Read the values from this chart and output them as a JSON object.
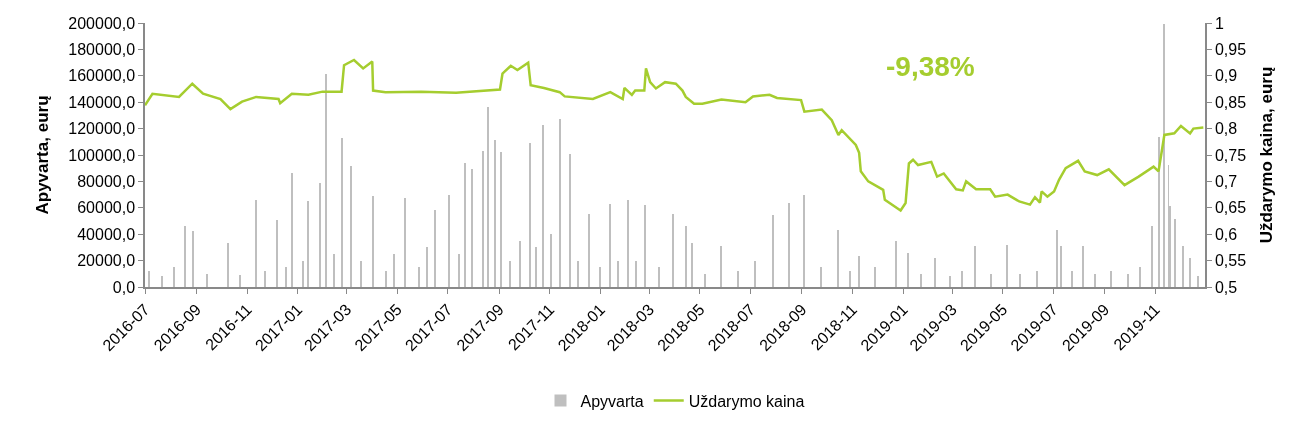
{
  "chart_data": {
    "type": "bar",
    "ylabel": "Apyvarta, eurų",
    "y2label": "Uždarymo kaina, eurų",
    "annotations": [
      "-9,38%"
    ],
    "xlim": [
      "2016-07-01",
      "2019-12-31"
    ],
    "xticks": [
      "2016-07",
      "2016-09",
      "2016-11",
      "2017-01",
      "2017-03",
      "2017-05",
      "2017-07",
      "2017-09",
      "2017-11",
      "2018-01",
      "2018-03",
      "2018-05",
      "2018-07",
      "2018-09",
      "2018-11",
      "2019-01",
      "2019-03",
      "2019-05",
      "2019-07",
      "2019-09",
      "2019-11"
    ],
    "ylim": [
      0,
      200000
    ],
    "yticks": [
      {
        "value": 0,
        "label": "0,0"
      },
      {
        "value": 20000,
        "label": "20000,0"
      },
      {
        "value": 40000,
        "label": "40000,0"
      },
      {
        "value": 60000,
        "label": "60000,0"
      },
      {
        "value": 80000,
        "label": "80000,0"
      },
      {
        "value": 100000,
        "label": "100000,0"
      },
      {
        "value": 120000,
        "label": "120000,0"
      },
      {
        "value": 140000,
        "label": "140000,0"
      },
      {
        "value": 160000,
        "label": "160000,0"
      },
      {
        "value": 180000,
        "label": "180000,0"
      },
      {
        "value": 200000,
        "label": "200000,0"
      }
    ],
    "y2lim": [
      0.5,
      1
    ],
    "y2ticks": [
      {
        "value": 0.5,
        "label": "0,5"
      },
      {
        "value": 0.55,
        "label": "0,55"
      },
      {
        "value": 0.6,
        "label": "0,6"
      },
      {
        "value": 0.65,
        "label": "0,65"
      },
      {
        "value": 0.7,
        "label": "0,7"
      },
      {
        "value": 0.75,
        "label": "0,75"
      },
      {
        "value": 0.8,
        "label": "0,8"
      },
      {
        "value": 0.85,
        "label": "0,85"
      },
      {
        "value": 0.9,
        "label": "0,9"
      },
      {
        "value": 0.95,
        "label": "0,95"
      },
      1
    ],
    "legend": "bottom",
    "series": [
      {
        "name": "Apyvarta",
        "color": "#bfbfbf",
        "x": [
          "2016-07-06",
          "2016-07-21",
          "2016-08-05",
          "2016-08-18",
          "2016-08-28",
          "2016-09-14",
          "2016-10-09",
          "2016-10-24",
          "2016-11-12",
          "2016-11-23",
          "2016-12-07",
          "2016-12-18",
          "2016-12-25",
          "2017-01-07",
          "2017-01-14",
          "2017-01-28",
          "2017-02-04",
          "2017-02-14",
          "2017-02-24",
          "2017-03-06",
          "2017-03-18",
          "2017-04-02",
          "2017-04-17",
          "2017-04-27",
          "2017-05-11",
          "2017-05-27",
          "2017-06-06",
          "2017-06-16",
          "2017-07-03",
          "2017-07-14",
          "2017-07-22",
          "2017-07-30",
          "2017-08-13",
          "2017-08-18",
          "2017-08-27",
          "2017-09-03",
          "2017-09-14",
          "2017-09-26",
          "2017-10-08",
          "2017-10-16",
          "2017-10-24",
          "2017-11-03",
          "2017-11-13",
          "2017-11-25",
          "2017-12-05",
          "2017-12-18",
          "2017-12-31",
          "2018-01-13",
          "2018-01-22",
          "2018-02-03",
          "2018-02-13",
          "2018-02-24",
          "2018-03-13",
          "2018-03-30",
          "2018-04-14",
          "2018-04-22",
          "2018-05-07",
          "2018-05-27",
          "2018-06-16",
          "2018-07-06",
          "2018-07-28",
          "2018-08-17",
          "2018-09-03",
          "2018-09-24",
          "2018-10-14",
          "2018-10-29",
          "2018-11-09",
          "2018-11-28",
          "2018-12-24",
          "2019-01-07",
          "2019-01-22",
          "2019-02-08",
          "2019-02-26",
          "2019-03-13",
          "2019-03-29",
          "2019-04-17",
          "2019-05-06",
          "2019-05-22",
          "2019-06-11",
          "2019-07-05",
          "2019-07-10",
          "2019-07-24",
          "2019-08-06",
          "2019-08-20",
          "2019-09-09",
          "2019-09-29",
          "2019-10-14",
          "2019-10-28",
          "2019-11-05",
          "2019-11-12",
          "2019-11-17",
          "2019-11-19",
          "2019-11-25",
          "2019-12-05",
          "2019-12-13",
          "2019-12-23"
        ],
        "values": [
          12000,
          8000,
          15000,
          46500,
          42600,
          10000,
          33600,
          9000,
          65700,
          12000,
          50800,
          15000,
          86700,
          20000,
          65200,
          79000,
          161000,
          25000,
          113000,
          92000,
          20000,
          69300,
          12000,
          25000,
          67500,
          15000,
          30000,
          58500,
          69500,
          25000,
          93900,
          89300,
          102800,
          136400,
          111000,
          102000,
          20000,
          35000,
          109200,
          30000,
          122600,
          40000,
          127200,
          100700,
          20000,
          55500,
          15000,
          62600,
          20000,
          65700,
          20000,
          61800,
          15000,
          55500,
          46000,
          33400,
          10000,
          31400,
          12000,
          20000,
          54700,
          63600,
          69900,
          15000,
          43500,
          12000,
          23600,
          15000,
          35200,
          25900,
          10000,
          22100,
          8000,
          12000,
          31400,
          10000,
          32200,
          10000,
          12000,
          43500,
          31400,
          12000,
          31400,
          10000,
          12000,
          10000,
          15000,
          46000,
          113800,
          199000,
          92500,
          61100,
          51400,
          31100,
          21900,
          8000
        ]
      },
      {
        "name": "Uždarymo kaina",
        "type": "line",
        "axis": "y2",
        "color": "#a5cd2f",
        "x": [
          "2016-07-01",
          "2016-07-10",
          "2016-08-11",
          "2016-08-27",
          "2016-09-09",
          "2016-09-30",
          "2016-10-12",
          "2016-10-26",
          "2016-11-12",
          "2016-12-09",
          "2016-12-11",
          "2016-12-25",
          "2017-01-14",
          "2017-01-31",
          "2017-02-23",
          "2017-02-26",
          "2017-03-10",
          "2017-03-21",
          "2017-04-01",
          "2017-04-02",
          "2017-04-17",
          "2017-05-30",
          "2017-07-11",
          "2017-09-02",
          "2017-09-05",
          "2017-09-15",
          "2017-09-23",
          "2017-10-06",
          "2017-10-09",
          "2017-10-25",
          "2017-11-13",
          "2017-11-19",
          "2017-12-23",
          "2018-01-13",
          "2018-01-28",
          "2018-01-30",
          "2018-02-08",
          "2018-02-12",
          "2018-02-23",
          "2018-02-25",
          "2018-03-02",
          "2018-03-09",
          "2018-03-20",
          "2018-04-02",
          "2018-04-10",
          "2018-04-14",
          "2018-04-24",
          "2018-05-04",
          "2018-05-27",
          "2018-06-25",
          "2018-07-04",
          "2018-07-24",
          "2018-08-02",
          "2018-08-31",
          "2018-09-04",
          "2018-09-25",
          "2018-10-07",
          "2018-10-15",
          "2018-10-19",
          "2018-11-05",
          "2018-11-09",
          "2018-11-11",
          "2018-11-20",
          "2018-12-08",
          "2018-12-10",
          "2018-12-29",
          "2019-01-04",
          "2019-01-08",
          "2019-01-13",
          "2019-01-19",
          "2019-02-04",
          "2019-02-11",
          "2019-02-19",
          "2019-03-06",
          "2019-03-14",
          "2019-03-18",
          "2019-03-30",
          "2019-04-16",
          "2019-04-22",
          "2019-05-07",
          "2019-05-21",
          "2019-06-03",
          "2019-06-09",
          "2019-06-15",
          "2019-06-17",
          "2019-06-24",
          "2019-07-02",
          "2019-07-08",
          "2019-07-16",
          "2019-07-31",
          "2019-08-08",
          "2019-08-23",
          "2019-09-06",
          "2019-09-25",
          "2019-10-12",
          "2019-10-30",
          "2019-11-05",
          "2019-11-12",
          "2019-11-24",
          "2019-12-02",
          "2019-12-13",
          "2019-12-17",
          "2019-12-29"
        ],
        "values": [
          0.844,
          0.866,
          0.86,
          0.885,
          0.866,
          0.856,
          0.837,
          0.851,
          0.86,
          0.856,
          0.848,
          0.866,
          0.864,
          0.87,
          0.87,
          0.92,
          0.93,
          0.914,
          0.927,
          0.872,
          0.869,
          0.87,
          0.868,
          0.874,
          0.904,
          0.919,
          0.911,
          0.925,
          0.882,
          0.877,
          0.869,
          0.861,
          0.856,
          0.869,
          0.856,
          0.877,
          0.864,
          0.872,
          0.872,
          0.914,
          0.888,
          0.876,
          0.888,
          0.885,
          0.872,
          0.86,
          0.847,
          0.847,
          0.855,
          0.85,
          0.861,
          0.864,
          0.858,
          0.854,
          0.832,
          0.836,
          0.816,
          0.788,
          0.797,
          0.769,
          0.754,
          0.719,
          0.7,
          0.684,
          0.665,
          0.645,
          0.659,
          0.734,
          0.741,
          0.731,
          0.737,
          0.709,
          0.715,
          0.685,
          0.683,
          0.7,
          0.685,
          0.685,
          0.671,
          0.675,
          0.662,
          0.656,
          0.67,
          0.66,
          0.681,
          0.671,
          0.681,
          0.703,
          0.725,
          0.739,
          0.719,
          0.712,
          0.723,
          0.693,
          0.709,
          0.728,
          0.719,
          0.788,
          0.791,
          0.805,
          0.791,
          0.8,
          0.802
        ]
      }
    ]
  }
}
